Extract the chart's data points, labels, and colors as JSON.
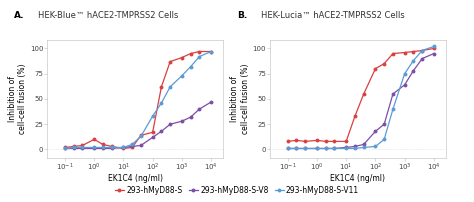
{
  "title_A": "HEK-Blue™ hACE2-TMPRSS2 Cells",
  "title_B": "HEK-Lucia™ hACE2-TMPRSS2 Cells",
  "label_A": "A.",
  "label_B": "B.",
  "xlabel": "EK1C4 (ng/ml)",
  "ylabel": "Inhibition of\ncell-cell fusion (%)",
  "x_ticks": [
    -1,
    0,
    1,
    2,
    3,
    4
  ],
  "x_tick_labels": [
    "$10^{-1}$",
    "$10^{0}$",
    "$10^{1}$",
    "$10^{2}$",
    "$10^{3}$",
    "$10^{4}$"
  ],
  "ylim": [
    -8,
    108
  ],
  "yticks": [
    0,
    25,
    50,
    75,
    100
  ],
  "xlim": [
    -1.6,
    4.4
  ],
  "colors": {
    "red": "#d94040",
    "purple": "#7b4fa6",
    "blue": "#5b9bd5"
  },
  "legend_labels": [
    "293-hMyD88-S",
    "293-hMyD88-S-V8",
    "293-hMyD88-S-V11"
  ],
  "panel_A": {
    "red_x": [
      -1,
      -0.7,
      -0.4,
      0,
      0.3,
      0.6,
      1.0,
      1.3,
      1.6,
      2.0,
      2.3,
      2.6,
      3.0,
      3.3,
      3.6,
      4.0
    ],
    "red_y": [
      2,
      3,
      4,
      10,
      5,
      3,
      1,
      2,
      14,
      17,
      62,
      87,
      91,
      95,
      97,
      97
    ],
    "purple_x": [
      -1,
      -0.7,
      -0.4,
      0,
      0.3,
      0.6,
      1.0,
      1.3,
      1.6,
      2.0,
      2.3,
      2.6,
      3.0,
      3.3,
      3.6,
      4.0
    ],
    "purple_y": [
      1,
      1,
      1,
      1,
      1,
      1,
      2,
      3,
      4,
      12,
      18,
      25,
      28,
      32,
      40,
      47
    ],
    "blue_x": [
      -1,
      -0.7,
      -0.4,
      0,
      0.3,
      0.6,
      1.0,
      1.3,
      1.6,
      2.0,
      2.3,
      2.6,
      3.0,
      3.3,
      3.6,
      4.0
    ],
    "blue_y": [
      1,
      2,
      2,
      2,
      2,
      2,
      2,
      5,
      13,
      33,
      46,
      62,
      73,
      82,
      92,
      97
    ]
  },
  "panel_B": {
    "red_x": [
      -1,
      -0.7,
      -0.4,
      0,
      0.3,
      0.6,
      1.0,
      1.3,
      1.6,
      2.0,
      2.3,
      2.6,
      3.0,
      3.3,
      3.6,
      4.0
    ],
    "red_y": [
      8,
      9,
      8,
      9,
      8,
      8,
      8,
      33,
      55,
      80,
      85,
      95,
      96,
      97,
      98,
      100
    ],
    "purple_x": [
      -1,
      -0.7,
      -0.4,
      0,
      0.3,
      0.6,
      1.0,
      1.3,
      1.6,
      2.0,
      2.3,
      2.6,
      3.0,
      3.3,
      3.6,
      4.0
    ],
    "purple_y": [
      1,
      1,
      1,
      1,
      1,
      1,
      2,
      3,
      5,
      18,
      25,
      55,
      64,
      78,
      90,
      95
    ],
    "blue_x": [
      -1,
      -0.7,
      -0.4,
      0,
      0.3,
      0.6,
      1.0,
      1.3,
      1.6,
      2.0,
      2.3,
      2.6,
      3.0,
      3.3,
      3.6,
      4.0
    ],
    "blue_y": [
      1,
      1,
      1,
      1,
      1,
      1,
      1,
      1,
      2,
      3,
      10,
      40,
      75,
      88,
      98,
      102
    ]
  },
  "background": "#ffffff",
  "plot_bg": "#ffffff",
  "font_size_title": 6.0,
  "font_size_label": 6.5,
  "font_size_axis": 5.5,
  "font_size_tick": 5.0,
  "font_size_legend": 5.5,
  "marker_size": 2.8,
  "line_width": 0.9
}
